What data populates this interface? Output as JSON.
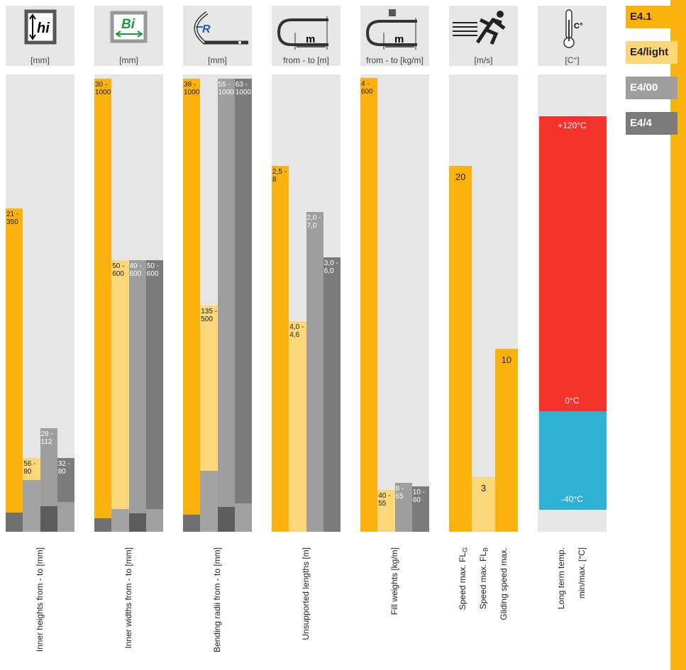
{
  "legend": [
    {
      "name": "E4.1",
      "color": "#fbb20f",
      "from_color": "#707070",
      "text_color": "#222222"
    },
    {
      "name": "E4/light",
      "color": "#fcd77a",
      "from_color": "#a4a4a4",
      "text_color": "#222222"
    },
    {
      "name": "E4/00",
      "color": "#9e9e9e",
      "from_color": "#5d5d5d",
      "text_color": "#ffffff"
    },
    {
      "name": "E4/4",
      "color": "#7b7b7b",
      "from_color": "#a0a0a0",
      "text_color": "#ffffff"
    }
  ],
  "columns": [
    {
      "type": "range",
      "icon_text": "hi",
      "unit": "[mm]",
      "ylim": [
        0,
        495
      ],
      "show_from": true,
      "bars": [
        {
          "series": 0,
          "from": 21,
          "to": 350,
          "value_label": "21 -\n350"
        },
        {
          "series": 1,
          "from": 56,
          "to": 80,
          "value_label": "56 -\n80"
        },
        {
          "series": 2,
          "from": 28,
          "to": 112,
          "value_label": "28 -\n112"
        },
        {
          "series": 3,
          "from": 32,
          "to": 80,
          "value_label": "32 -\n80"
        }
      ],
      "footer": [
        {
          "text": "Inner heights from - to [mm]"
        }
      ]
    },
    {
      "type": "range",
      "icon_text": "Bi",
      "unit": "[mm]",
      "ylim": [
        0,
        1010
      ],
      "show_from": true,
      "bars": [
        {
          "series": 0,
          "from": 30,
          "to": 1000,
          "value_label": "30 -\n1000"
        },
        {
          "series": 1,
          "from": 50,
          "to": 600,
          "value_label": "50 -\n600"
        },
        {
          "series": 2,
          "from": 40,
          "to": 600,
          "value_label": "40 -\n600"
        },
        {
          "series": 3,
          "from": 50,
          "to": 600,
          "value_label": "50 -\n600"
        }
      ],
      "footer": [
        {
          "text": "Inner widths from - to [mm]"
        }
      ]
    },
    {
      "type": "range",
      "icon_text": "R",
      "unit": "[mm]",
      "ylim": [
        0,
        1010
      ],
      "show_from": true,
      "bars": [
        {
          "series": 0,
          "from": 38,
          "to": 1000,
          "value_label": "38 -\n1000"
        },
        {
          "series": 1,
          "from": 135,
          "to": 500,
          "value_label": "135 -\n500"
        },
        {
          "series": 2,
          "from": 55,
          "to": 1000,
          "value_label": "55 -\n1000"
        },
        {
          "series": 3,
          "from": 63,
          "to": 1000,
          "value_label": "63 -\n1000"
        }
      ],
      "footer": [
        {
          "text": "Bending radii from - to [mm]"
        }
      ]
    },
    {
      "type": "range",
      "icon_text": "m",
      "unit": "from - to [m]",
      "ylim": [
        0,
        10
      ],
      "show_from": false,
      "bars": [
        {
          "series": 0,
          "from": 2.5,
          "to": 8,
          "value_label": "2,5 -\n8"
        },
        {
          "series": 1,
          "from": 4.0,
          "to": 4.6,
          "value_label": "4,0 -\n4,6"
        },
        {
          "series": 2,
          "from": 2.0,
          "to": 7.0,
          "value_label": "2,0 -\n7,0"
        },
        {
          "series": 3,
          "from": 3.0,
          "to": 6.0,
          "value_label": "3,0 -\n6,0"
        }
      ],
      "footer": [
        {
          "text": "Unsupported lengths [m]"
        }
      ]
    },
    {
      "type": "range",
      "icon_text": "m",
      "unit": "from - to [kg/m]",
      "ylim": [
        0,
        605
      ],
      "show_from": false,
      "bars": [
        {
          "series": 0,
          "from": 4,
          "to": 600,
          "value_label": "4 -\n600"
        },
        {
          "series": 1,
          "from": 40,
          "to": 55,
          "value_label": "40 -\n55"
        },
        {
          "series": 2,
          "from": 8,
          "to": 65,
          "value_label": "8 -\n65"
        },
        {
          "series": 3,
          "from": 10,
          "to": 60,
          "value_label": "10 -\n60"
        }
      ],
      "footer": [
        {
          "text": "Fill weights [kg/m]"
        }
      ]
    },
    {
      "type": "value",
      "unit": "[m/s]",
      "ylim": [
        0,
        25
      ],
      "bars": [
        {
          "series": 0,
          "value": 20
        },
        {
          "series": 1,
          "value": 3
        },
        {
          "series": 0,
          "value": 10
        }
      ],
      "footer": [
        {
          "text": "Speed max. FL",
          "sub": "G"
        },
        {
          "text": "Speed max. FL",
          "sub": "B"
        },
        {
          "text": "Gliding speed max."
        }
      ]
    },
    {
      "type": "temperature",
      "icon_text": "C°",
      "unit": "[C°]",
      "ylim": [
        -49,
        137
      ],
      "segments": [
        {
          "from": 0,
          "to": 120,
          "color": "#f5332c"
        },
        {
          "from": -40,
          "to": 0,
          "color": "#2fb1d4"
        }
      ],
      "labels": [
        {
          "value": 120,
          "label": "+120°C"
        },
        {
          "value": 0,
          "label": "0°C"
        },
        {
          "value": -40,
          "label": "-40°C"
        }
      ],
      "footer": [
        {
          "text": "Long term temp."
        },
        {
          "text": "min/max. [°C]"
        }
      ]
    }
  ]
}
